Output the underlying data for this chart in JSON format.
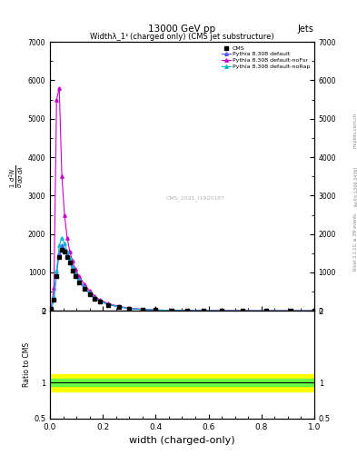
{
  "title_top": "13000 GeV pp",
  "title_right": "Jets",
  "plot_title": "Widthλ_1¹ (charged only) (CMS jet substructure)",
  "watermark": "CMS_2021_I1920187",
  "right_label": "Rivet 3.1.10, ≥ 3M events",
  "arxiv_label": "[arXiv:1306.3436]",
  "mcplots_label": "mcplots.cern.ch",
  "xlabel": "width (charged-only)",
  "ylabel_ratio": "Ratio to CMS",
  "xlim": [
    0,
    1
  ],
  "ylim_main": [
    0,
    7000
  ],
  "ylim_ratio": [
    0.5,
    2
  ],
  "cms_color": "#000000",
  "line_colors": [
    "#5555ff",
    "#cc00cc",
    "#00bbcc"
  ],
  "line_labels": [
    "Pythia 8.308 default",
    "Pythia 8.308 default-noFsr",
    "Pythia 8.308 default-noRap"
  ],
  "x_data": [
    0.005,
    0.015,
    0.025,
    0.035,
    0.045,
    0.055,
    0.065,
    0.075,
    0.085,
    0.095,
    0.11,
    0.13,
    0.15,
    0.17,
    0.19,
    0.22,
    0.26,
    0.3,
    0.35,
    0.4,
    0.46,
    0.52,
    0.58,
    0.65,
    0.73,
    0.82,
    0.91,
    1.0
  ],
  "cms_y": [
    50,
    300,
    900,
    1400,
    1600,
    1550,
    1400,
    1250,
    1050,
    900,
    750,
    580,
    430,
    320,
    240,
    160,
    100,
    60,
    35,
    20,
    12,
    7,
    4,
    2,
    1,
    0.5,
    0.2,
    0.1
  ],
  "default_y": [
    55,
    320,
    950,
    1500,
    1700,
    1600,
    1450,
    1280,
    1080,
    920,
    760,
    590,
    440,
    325,
    245,
    162,
    102,
    62,
    36,
    21,
    13,
    7,
    4,
    2,
    1,
    0.5,
    0.2,
    0.1
  ],
  "noFsr_y": [
    100,
    600,
    5500,
    5800,
    3500,
    2500,
    1900,
    1550,
    1300,
    1100,
    900,
    700,
    520,
    380,
    285,
    190,
    118,
    72,
    42,
    24,
    14,
    8,
    5,
    3,
    1.5,
    0.7,
    0.3,
    0.1
  ],
  "noRap_y": [
    60,
    350,
    1050,
    1700,
    1900,
    1750,
    1550,
    1380,
    1150,
    980,
    810,
    630,
    470,
    345,
    260,
    170,
    107,
    65,
    38,
    22,
    13,
    7.5,
    4.5,
    2.5,
    1.2,
    0.6,
    0.25,
    0.1
  ],
  "ratio_green_lo": 0.95,
  "ratio_green_hi": 1.05,
  "ratio_yellow_lo": 0.88,
  "ratio_yellow_hi": 1.12,
  "yticks_main": [
    0,
    1000,
    2000,
    3000,
    4000,
    5000,
    6000,
    7000
  ],
  "ytick_labels_main": [
    "0",
    "1000",
    "2000",
    "3000",
    "4000",
    "5000",
    "6000",
    "7000"
  ]
}
